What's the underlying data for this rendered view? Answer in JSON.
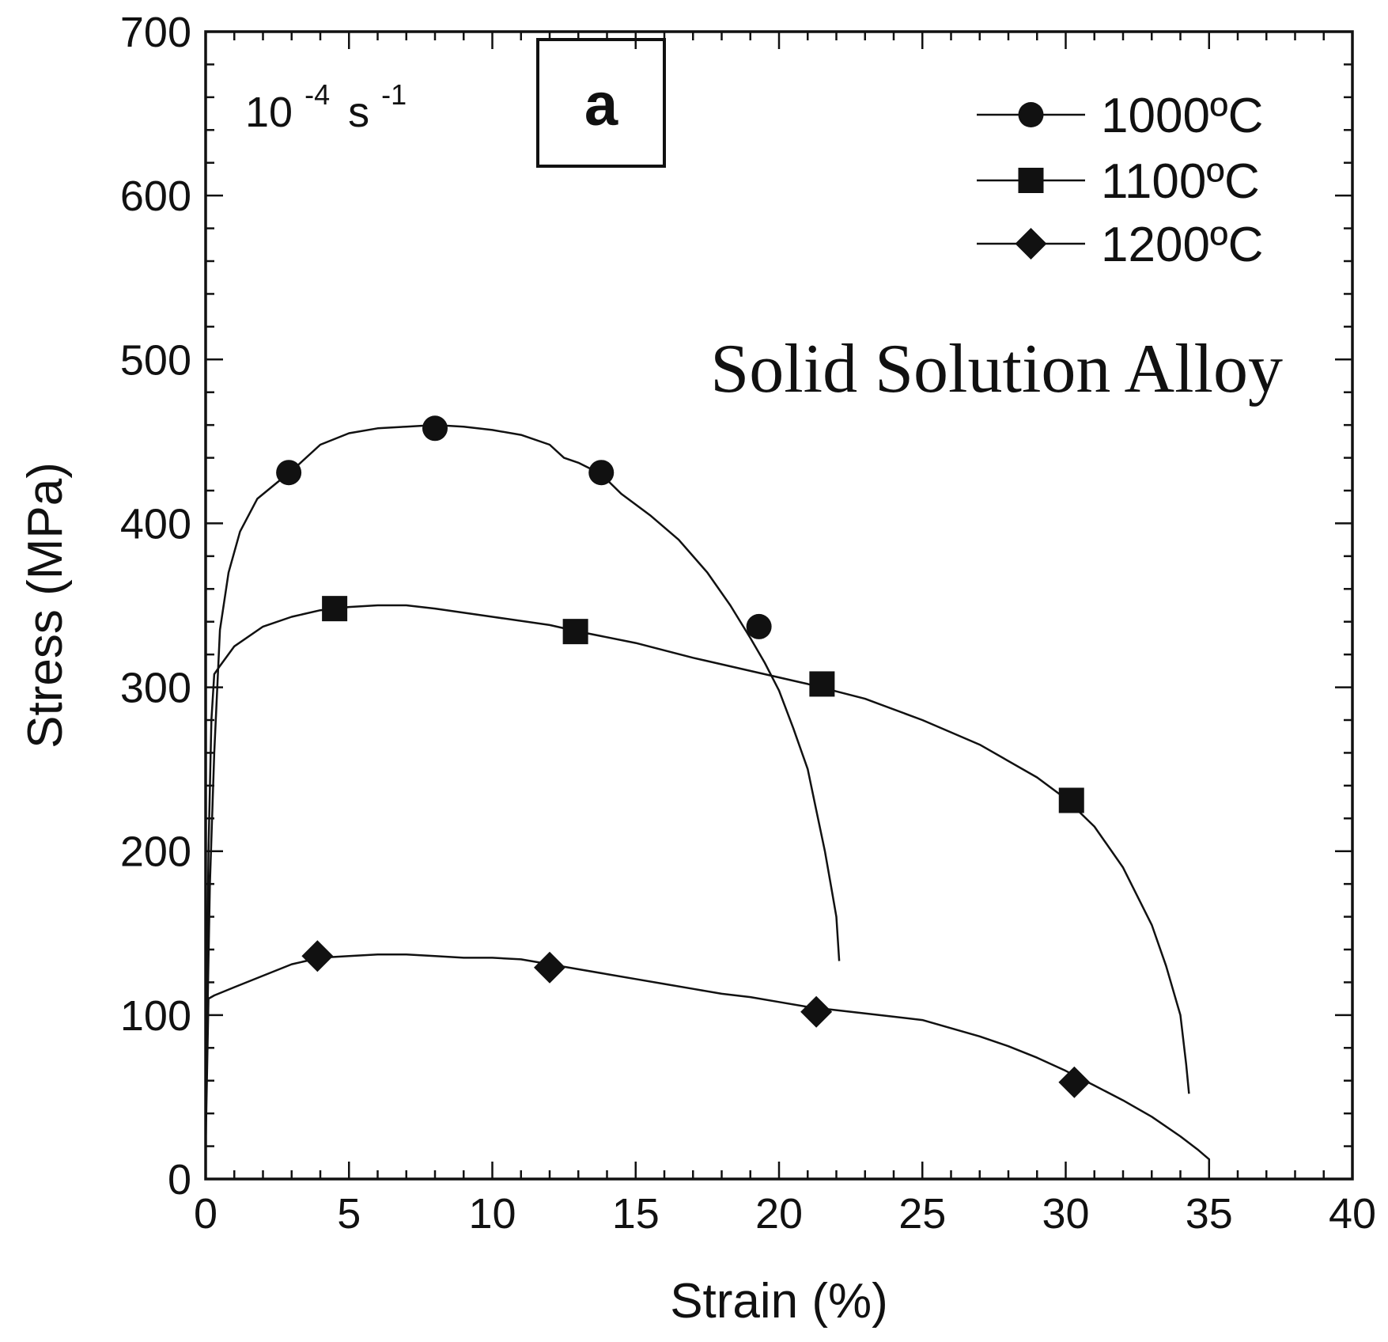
{
  "chart_data": {
    "type": "line",
    "xlabel": "Strain (%)",
    "ylabel": "Stress (MPa)",
    "xlim": [
      0,
      40
    ],
    "ylim": [
      0,
      700
    ],
    "x_ticks": [
      "0",
      "5",
      "10",
      "15",
      "20",
      "25",
      "30",
      "35",
      "40"
    ],
    "y_ticks": [
      "0",
      "100",
      "200",
      "300",
      "400",
      "500",
      "600",
      "700"
    ],
    "grid": false,
    "legend_position": "top-right",
    "strain_rate": {
      "base": "10",
      "base_exp": "-4",
      "unit": "s",
      "unit_exp": "-1"
    },
    "panel_label": "a",
    "annotation": "Solid Solution Alloy",
    "series": [
      {
        "name": "1000ºC",
        "marker": "circle",
        "color": "#111111",
        "x": [
          0,
          0.15,
          0.3,
          0.5,
          0.8,
          1.2,
          1.8,
          2.5,
          3.0,
          4.0,
          5.0,
          6.0,
          7.0,
          8.0,
          9.0,
          10.0,
          11.0,
          12.0,
          12.5,
          13.0,
          13.8,
          14.5,
          15.5,
          16.5,
          17.5,
          18.3,
          19.0,
          19.5,
          20.0,
          20.5,
          21.0,
          21.3,
          21.6,
          21.8,
          22.0,
          22.1
        ],
        "y": [
          40,
          180,
          260,
          335,
          370,
          395,
          415,
          425,
          432,
          448,
          455,
          458,
          459,
          460,
          459,
          457,
          454,
          448,
          440,
          437,
          430,
          418,
          405,
          390,
          370,
          350,
          330,
          315,
          298,
          275,
          250,
          225,
          200,
          180,
          160,
          133
        ],
        "marker_x": [
          2.9,
          8.0,
          13.8,
          19.3
        ],
        "marker_y": [
          431,
          458,
          431,
          337
        ]
      },
      {
        "name": "1100ºC",
        "marker": "square",
        "color": "#111111",
        "x": [
          0,
          0.1,
          0.2,
          0.3,
          0.5,
          1.0,
          2.0,
          3.0,
          4.0,
          5.0,
          6.0,
          7.0,
          8.0,
          10.0,
          12.0,
          13.0,
          15.0,
          17.0,
          19.0,
          21.0,
          23.0,
          25.0,
          27.0,
          29.0,
          30.0,
          31.0,
          32.0,
          33.0,
          33.5,
          34.0,
          34.2,
          34.3
        ],
        "y": [
          40,
          200,
          280,
          308,
          313,
          325,
          337,
          343,
          347,
          349,
          350,
          350,
          348,
          343,
          338,
          334,
          327,
          318,
          310,
          302,
          293,
          280,
          265,
          245,
          232,
          215,
          190,
          155,
          130,
          100,
          70,
          52
        ],
        "marker_x": [
          4.5,
          12.9,
          21.5,
          30.2
        ],
        "marker_y": [
          348,
          334,
          302,
          231
        ]
      },
      {
        "name": "1200ºC",
        "marker": "diamond",
        "color": "#111111",
        "x": [
          0,
          0.1,
          0.3,
          1.0,
          2.0,
          3.0,
          4.0,
          5.0,
          6.0,
          7.0,
          8.0,
          9.0,
          10.0,
          11.0,
          12.0,
          13.0,
          14.0,
          15.0,
          16.0,
          17.0,
          18.0,
          19.0,
          20.0,
          21.0,
          22.0,
          23.0,
          24.0,
          25.0,
          26.0,
          27.0,
          28.0,
          29.0,
          30.0,
          31.0,
          32.0,
          33.0,
          34.0,
          34.6,
          35.0,
          35.0
        ],
        "y": [
          20,
          110,
          112,
          117,
          124,
          131,
          135,
          136,
          137,
          137,
          136,
          135,
          135,
          134,
          131,
          128,
          125,
          122,
          119,
          116,
          113,
          111,
          108,
          105,
          103,
          101,
          99,
          97,
          92,
          87,
          81,
          74,
          66,
          57,
          48,
          38,
          26,
          18,
          12,
          6
        ],
        "marker_x": [
          3.9,
          12.0,
          21.3,
          30.3
        ],
        "marker_y": [
          136,
          129,
          102,
          59
        ]
      }
    ]
  }
}
